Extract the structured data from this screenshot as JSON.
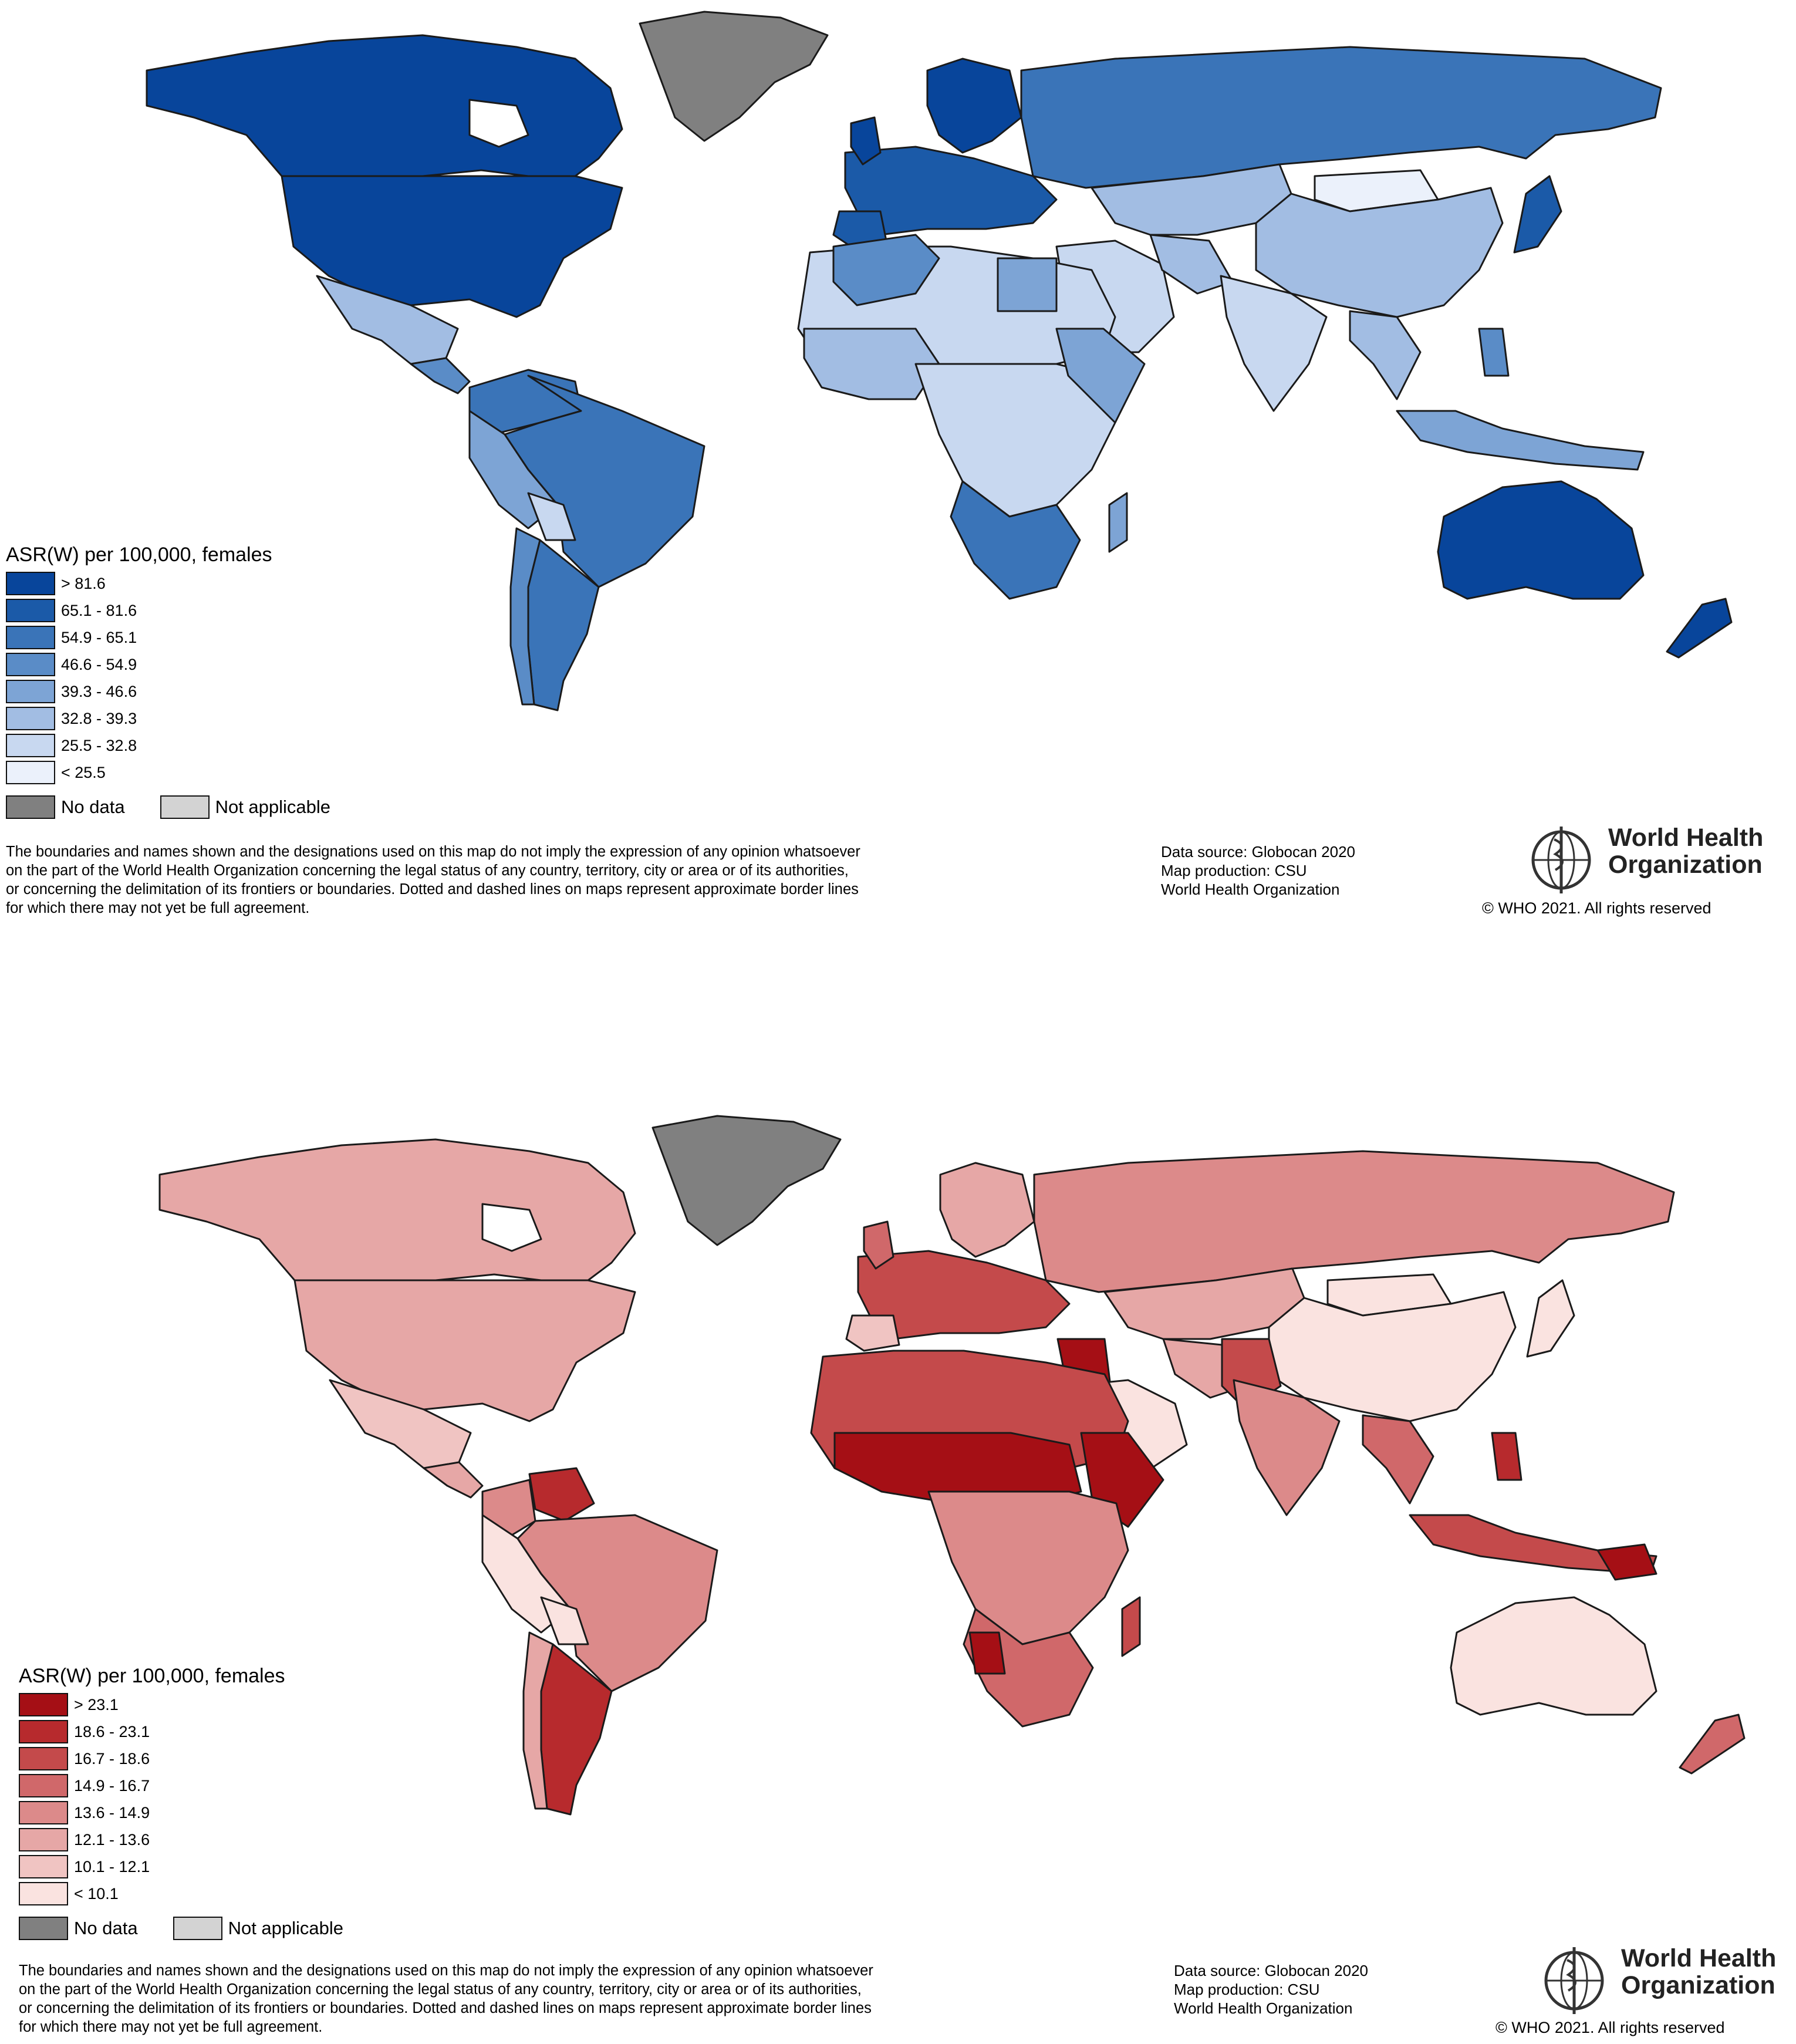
{
  "maps": [
    {
      "id": "top",
      "legend": {
        "title": "ASR(W) per 100,000, females",
        "classes": [
          {
            "label": "> 81.6",
            "color": "#08459b"
          },
          {
            "label": "65.1 - 81.6",
            "color": "#1b5aa8"
          },
          {
            "label": "54.9 - 65.1",
            "color": "#3a74b8"
          },
          {
            "label": "46.6 - 54.9",
            "color": "#5a8cc7"
          },
          {
            "label": "39.3 - 46.6",
            "color": "#7da4d5"
          },
          {
            "label": "32.8 - 39.3",
            "color": "#a2bde3"
          },
          {
            "label": "25.5 - 32.8",
            "color": "#c8d8f0"
          },
          {
            "label": "< 25.5",
            "color": "#ebf1fb"
          }
        ],
        "no_data": {
          "label": "No data",
          "color": "#808080"
        },
        "not_applicable": {
          "label": "Not applicable",
          "color": "#d3d3d3"
        }
      }
    },
    {
      "id": "bottom",
      "legend": {
        "title": "ASR(W) per 100,000, females",
        "classes": [
          {
            "label": "> 23.1",
            "color": "#a50f15"
          },
          {
            "label": "18.6 - 23.1",
            "color": "#b72a2d"
          },
          {
            "label": "16.7 - 18.6",
            "color": "#c44a4b"
          },
          {
            "label": "14.9 - 16.7",
            "color": "#d0686a"
          },
          {
            "label": "13.6 - 14.9",
            "color": "#dc8a8a"
          },
          {
            "label": "12.1 - 13.6",
            "color": "#e6a7a6"
          },
          {
            "label": "10.1 - 12.1",
            "color": "#f0c4c2"
          },
          {
            "label": "< 10.1",
            "color": "#fae3e0"
          }
        ],
        "no_data": {
          "label": "No data",
          "color": "#808080"
        },
        "not_applicable": {
          "label": "Not applicable",
          "color": "#d3d3d3"
        }
      }
    }
  ],
  "disclaimer": [
    "The boundaries and names shown and the designations used on this map do not imply the expression of any opinion whatsoever",
    "on the part of the World Health Organization concerning the legal status of any country, territory, city or area or of its authorities,",
    "or concerning the delimitation of its frontiers or boundaries. Dotted and dashed lines on maps represent approximate border lines",
    "for which there may not yet be full agreement."
  ],
  "source": {
    "line1": "Data source: Globocan 2020",
    "line2": "Map production: CSU",
    "line3": "World Health Organization"
  },
  "who": {
    "name_line1": "World Health",
    "name_line2": "Organization",
    "copyright": "© WHO 2021. All rights reserved"
  }
}
